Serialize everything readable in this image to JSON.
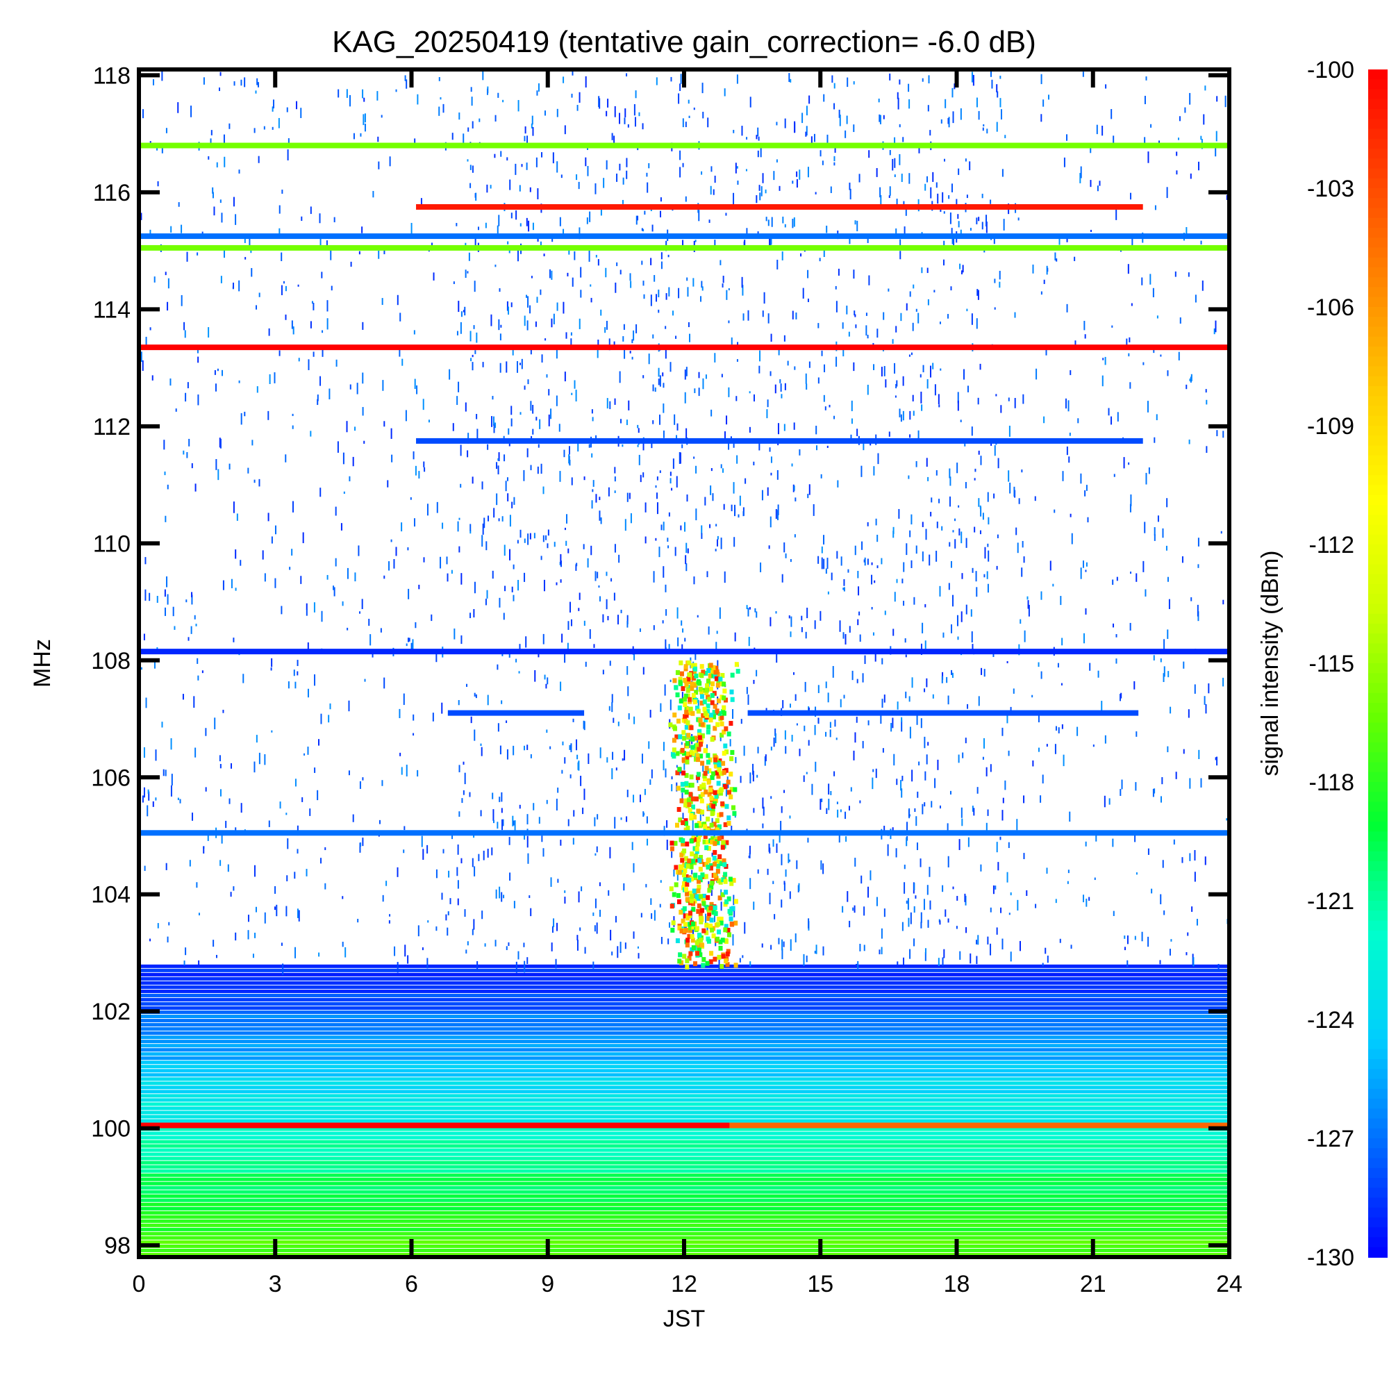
{
  "chart_data": {
    "type": "heatmap",
    "title": "KAG_20250419 (tentative gain_correction= -6.0 dB)",
    "xlabel": "JST",
    "ylabel": "MHz",
    "colorbar_label": "signal intensity (dBm)",
    "xlim": [
      0,
      24
    ],
    "ylim": [
      97.8,
      118.1
    ],
    "clim": [
      -130,
      -100
    ],
    "x_ticks": [
      "0",
      "3",
      "6",
      "9",
      "12",
      "15",
      "18",
      "21",
      "24"
    ],
    "y_ticks": [
      "98",
      "100",
      "102",
      "104",
      "106",
      "108",
      "110",
      "112",
      "114",
      "116",
      "118"
    ],
    "colorbar_ticks": [
      "-100",
      "-103",
      "-106",
      "-109",
      "-112",
      "-115",
      "-118",
      "-121",
      "-124",
      "-127",
      "-130"
    ],
    "colormap": [
      "#0000ff",
      "#0066ff",
      "#00ccff",
      "#00ffcc",
      "#00ff33",
      "#66ff00",
      "#ccff00",
      "#ffff00",
      "#ffcc00",
      "#ff8800",
      "#ff4400",
      "#ff0000"
    ],
    "constant_carriers": [
      {
        "freq": 116.8,
        "t_start": 0,
        "t_end": 24,
        "dbm": -116
      },
      {
        "freq": 115.75,
        "t_start": 6.1,
        "t_end": 22.1,
        "dbm": -101
      },
      {
        "freq": 115.25,
        "t_start": 0,
        "t_end": 24,
        "dbm": -127
      },
      {
        "freq": 115.05,
        "t_start": 0,
        "t_end": 24,
        "dbm": -116
      },
      {
        "freq": 113.35,
        "t_start": 0,
        "t_end": 24,
        "dbm": -100
      },
      {
        "freq": 111.75,
        "t_start": 6.1,
        "t_end": 22.1,
        "dbm": -128
      },
      {
        "freq": 108.15,
        "t_start": 0,
        "t_end": 24,
        "dbm": -129
      },
      {
        "freq": 107.1,
        "t_start": 6.8,
        "t_end": 9.8,
        "dbm": -128
      },
      {
        "freq": 107.1,
        "t_start": 13.4,
        "t_end": 22.0,
        "dbm": -128
      },
      {
        "freq": 105.05,
        "t_start": 0,
        "t_end": 24,
        "dbm": -127
      },
      {
        "freq": 100.05,
        "t_start": 0,
        "t_end": 13.0,
        "dbm": -100
      },
      {
        "freq": 100.05,
        "t_start": 13.0,
        "t_end": 24,
        "dbm": -104
      }
    ],
    "noise_band": {
      "freq_low": 97.8,
      "freq_high": 102.8,
      "dbm_at_low": -117,
      "dbm_at_high": -129
    },
    "sporadic_region": {
      "freq_low": 102.8,
      "freq_high": 118.1,
      "dbm": -129
    },
    "midday_burst": {
      "t_center": 12.4,
      "freq_low": 102.8,
      "freq_high": 108.0,
      "dbm_range": [
        -124,
        -100
      ]
    }
  }
}
